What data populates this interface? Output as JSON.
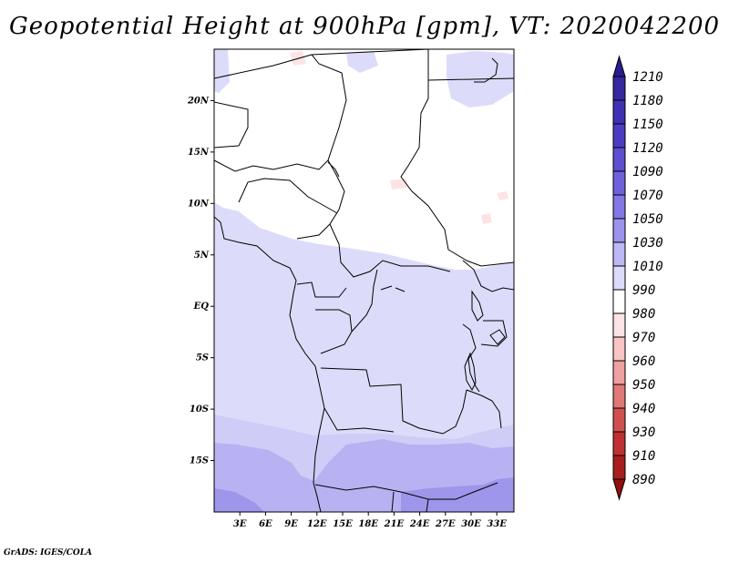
{
  "title": "Geopotential Height at 900hPa [gpm], VT: 2020042200",
  "footer": "GrADS: IGES/COLA",
  "map": {
    "lon_range": [
      0,
      35
    ],
    "lat_range": [
      -20,
      25
    ],
    "x_ticks": [
      "3E",
      "6E",
      "9E",
      "12E",
      "15E",
      "18E",
      "21E",
      "24E",
      "27E",
      "30E",
      "33E"
    ],
    "x_tick_values": [
      3,
      6,
      9,
      12,
      15,
      18,
      21,
      24,
      27,
      30,
      33
    ],
    "y_ticks": [
      "20N",
      "15N",
      "10N",
      "5N",
      "EQ",
      "5S",
      "10S",
      "15S"
    ],
    "y_tick_values": [
      20,
      15,
      10,
      5,
      0,
      -5,
      -10,
      -15
    ]
  },
  "colorbar": {
    "labels": [
      "1210",
      "1180",
      "1150",
      "1120",
      "1090",
      "1070",
      "1050",
      "1030",
      "1010",
      "990",
      "980",
      "970",
      "960",
      "950",
      "940",
      "930",
      "910",
      "890"
    ],
    "colors": [
      "#2a1d8c",
      "#3528a0",
      "#4030b4",
      "#4c3cc4",
      "#5c4fd0",
      "#6e62dc",
      "#8278e4",
      "#9a93ec",
      "#bcb8f4",
      "#dcdcfa",
      "#ffffff",
      "#fde4e4",
      "#f8c4c4",
      "#f0a0a0",
      "#e07878",
      "#d05050",
      "#c03030",
      "#a81e1e",
      "#901010"
    ]
  }
}
